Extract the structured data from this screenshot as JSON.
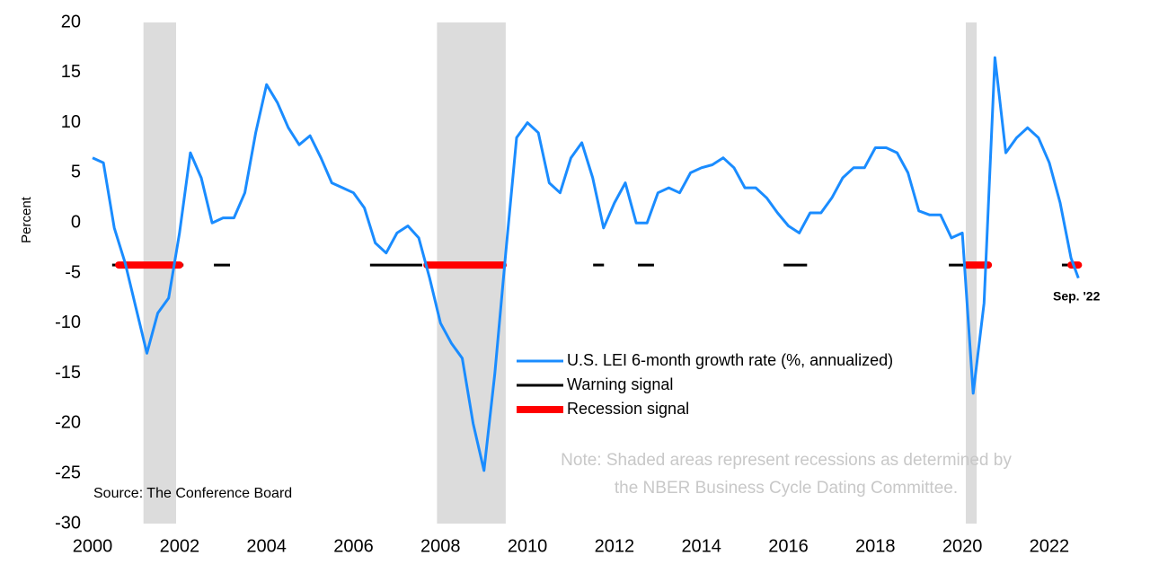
{
  "chart_data": {
    "type": "line",
    "y_label": "Percent",
    "source": "Source: The Conference Board",
    "note": [
      "Note: Shaded areas represent recessions as determined by",
      "the NBER Business Cycle Dating Committee."
    ],
    "end_label": "Sep. '22",
    "x": [
      2000,
      2000.25,
      2000.5,
      2000.75,
      2001,
      2001.25,
      2001.5,
      2001.75,
      2002,
      2002.25,
      2002.5,
      2002.75,
      2003,
      2003.25,
      2003.5,
      2003.75,
      2004,
      2004.25,
      2004.5,
      2004.75,
      2005,
      2005.25,
      2005.5,
      2005.75,
      2006,
      2006.25,
      2006.5,
      2006.75,
      2007,
      2007.25,
      2007.5,
      2007.75,
      2008,
      2008.25,
      2008.5,
      2008.75,
      2009,
      2009.25,
      2009.5,
      2009.75,
      2010,
      2010.25,
      2010.5,
      2010.75,
      2011,
      2011.25,
      2011.5,
      2011.75,
      2012,
      2012.25,
      2012.5,
      2012.75,
      2013,
      2013.25,
      2013.5,
      2013.75,
      2014,
      2014.25,
      2014.5,
      2014.75,
      2015,
      2015.25,
      2015.5,
      2015.75,
      2016,
      2016.25,
      2016.5,
      2016.75,
      2017,
      2017.25,
      2017.5,
      2017.75,
      2018,
      2018.25,
      2018.5,
      2018.75,
      2019,
      2019.25,
      2019.5,
      2019.75,
      2020,
      2020.25,
      2020.5,
      2020.75,
      2021,
      2021.25,
      2021.5,
      2021.75,
      2022,
      2022.25,
      2022.5,
      2022.67
    ],
    "series": [
      {
        "name": "U.S. LEI 6-month growth rate (%, annualized)",
        "color": "#1a8cff",
        "values": [
          6.5,
          6,
          -0.5,
          -4,
          -8.5,
          -13,
          -9,
          -7.5,
          -1,
          7,
          4.5,
          0,
          0.5,
          0.5,
          3,
          9,
          13.8,
          12,
          9.5,
          7.8,
          8.7,
          6.5,
          4,
          3.5,
          3,
          1.5,
          -2,
          -3,
          -1,
          -0.3,
          -1.5,
          -5.5,
          -10,
          -12,
          -13.5,
          -20,
          -24.7,
          -15,
          -3,
          8.5,
          10,
          9,
          4,
          3,
          6.5,
          8,
          4.5,
          -0.5,
          2,
          4,
          0,
          0,
          3,
          3.5,
          3,
          5,
          5.5,
          5.8,
          6.5,
          5.5,
          3.5,
          3.5,
          2.5,
          1,
          -0.3,
          -1,
          1,
          1,
          2.5,
          4.5,
          5.5,
          5.5,
          7.5,
          7.5,
          7,
          5,
          1.2,
          0.8,
          0.8,
          -1.5,
          -1,
          -17,
          -8,
          16.5,
          7,
          8.5,
          9.5,
          8.5,
          6,
          2,
          -3.5,
          -5.5
        ]
      }
    ],
    "signals": [
      {
        "name": "Warning signal",
        "color": "#000000",
        "level": -4.2,
        "periods": [
          [
            2000.45,
            2000.6
          ],
          [
            2002.0,
            2002.09
          ],
          [
            2002.79,
            2003.16
          ],
          [
            2006.38,
            2007.58
          ],
          [
            2011.51,
            2011.76
          ],
          [
            2012.54,
            2012.91
          ],
          [
            2015.89,
            2016.43
          ],
          [
            2019.69,
            2020.02
          ],
          [
            2022.29,
            2022.5
          ]
        ]
      },
      {
        "name": "Recession signal",
        "color": "#ff0000",
        "level": -4.2,
        "periods": [
          [
            2000.6,
            2002.0
          ],
          [
            2007.69,
            2009.44
          ],
          [
            2020.1,
            2020.6
          ],
          [
            2022.5,
            2022.67
          ]
        ]
      }
    ],
    "recessions": [
      [
        2001.17,
        2001.92
      ],
      [
        2007.92,
        2009.5
      ],
      [
        2020.08,
        2020.33
      ]
    ],
    "recession_color": "#dcdcdc",
    "xlim": [
      1999.9,
      2023.2
    ],
    "ylim": [
      -30,
      20
    ],
    "xticks": [
      2000,
      2002,
      2004,
      2006,
      2008,
      2010,
      2012,
      2014,
      2016,
      2018,
      2020,
      2022
    ],
    "yticks": [
      -30,
      -25,
      -20,
      -15,
      -10,
      -5,
      0,
      5,
      10,
      15,
      20
    ],
    "grid": false
  }
}
